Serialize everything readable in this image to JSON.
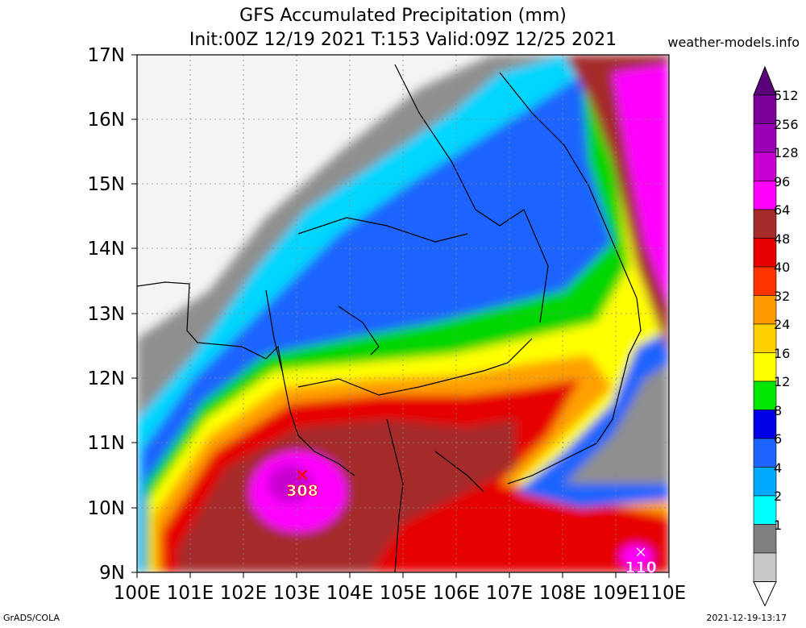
{
  "header": {
    "title": "GFS Accumulated Precipitation (mm)",
    "subtitle": "Init:00Z 12/19 2021 T:153 Valid:09Z 12/25 2021",
    "site": "weather-models.info"
  },
  "axes": {
    "lat_labels": [
      "17N",
      "16N",
      "15N",
      "14N",
      "13N",
      "12N",
      "11N",
      "10N",
      "9N"
    ],
    "lon_labels": [
      "100E",
      "101E",
      "102E",
      "103E",
      "104E",
      "105E",
      "106E",
      "107E",
      "108E",
      "109E",
      "110E"
    ]
  },
  "colorbar": {
    "labels": [
      "512",
      "256",
      "128",
      "96",
      "64",
      "48",
      "40",
      "32",
      "24",
      "16",
      "12",
      "8",
      "6",
      "4",
      "2",
      "1"
    ],
    "colors": [
      "#7a0099",
      "#9a00b8",
      "#c800d2",
      "#ff00ff",
      "#a52a2a",
      "#e60000",
      "#ff3300",
      "#ff9900",
      "#ffd000",
      "#ffff00",
      "#00e600",
      "#0000e6",
      "#1e64ff",
      "#00aaff",
      "#00ffff",
      "#7f7f7f",
      "#c8c8c8"
    ]
  },
  "maxima": [
    {
      "label": "308",
      "lon": 103.1,
      "lat": 10.5
    },
    {
      "label": "110",
      "lon": 109.4,
      "lat": 9.3
    }
  ],
  "footer": {
    "left": "GrADS/COLA",
    "right": "2021-12-19-13:17"
  }
}
